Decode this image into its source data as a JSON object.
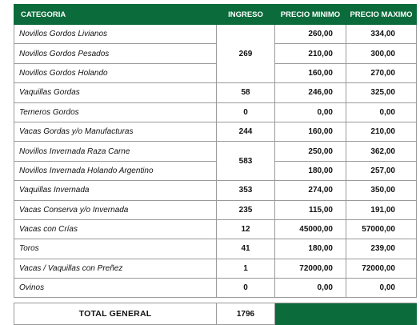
{
  "headers": {
    "categoria": "CATEGORIA",
    "ingreso": "INGRESO",
    "precio_minimo": "PRECIO MINIMO",
    "precio_maximo": "PRECIO MAXIMO"
  },
  "rows": [
    {
      "categoria": "Novillos Gordos Livianos",
      "ingreso": "269",
      "min": "260,00",
      "max": "334,00"
    },
    {
      "categoria": "Novillos Gordos Pesados",
      "ingreso": "",
      "min": "210,00",
      "max": "300,00"
    },
    {
      "categoria": "Novillos Gordos Holando",
      "ingreso": "",
      "min": "160,00",
      "max": "270,00"
    },
    {
      "categoria": "Vaquillas Gordas",
      "ingreso": "58",
      "min": "246,00",
      "max": "325,00"
    },
    {
      "categoria": "Terneros Gordos",
      "ingreso": "0",
      "min": "0,00",
      "max": "0,00"
    },
    {
      "categoria": "Vacas Gordas y/o Manufacturas",
      "ingreso": "244",
      "min": "160,00",
      "max": "210,00"
    },
    {
      "categoria": "Novillos Invernada Raza Carne",
      "ingreso": "583",
      "min": "250,00",
      "max": "362,00"
    },
    {
      "categoria": "Novillos Invernada Holando Argentino",
      "ingreso": "",
      "min": "180,00",
      "max": "257,00"
    },
    {
      "categoria": "Vaquillas Invernada",
      "ingreso": "353",
      "min": "274,00",
      "max": "350,00"
    },
    {
      "categoria": "Vacas Conserva y/o Invernada",
      "ingreso": "235",
      "min": "115,00",
      "max": "191,00"
    },
    {
      "categoria": "Vacas con Crías",
      "ingreso": "12",
      "min": "45000,00",
      "max": "57000,00"
    },
    {
      "categoria": "Toros",
      "ingreso": "41",
      "min": "180,00",
      "max": "239,00"
    },
    {
      "categoria": "Vacas / Vaquillas con Preñez",
      "ingreso": "1",
      "min": "72000,00",
      "max": "72000,00"
    },
    {
      "categoria": "Ovinos",
      "ingreso": "0",
      "min": "0,00",
      "max": "0,00"
    }
  ],
  "total": {
    "label": "TOTAL GENERAL",
    "value": "1796"
  },
  "colors": {
    "header_bg": "#0b6b3a",
    "header_text": "#ffffff"
  }
}
